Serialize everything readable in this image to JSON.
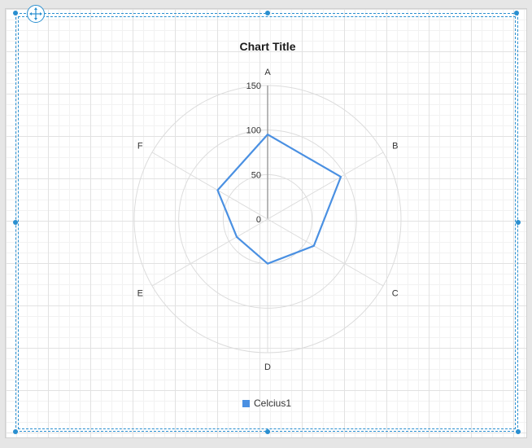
{
  "chart_data": {
    "type": "radar",
    "title": "Chart Title",
    "categories": [
      "A",
      "B",
      "C",
      "D",
      "E",
      "F"
    ],
    "radial_ticks": [
      "0",
      "50",
      "100",
      "150"
    ],
    "rmax": 150,
    "series": [
      {
        "name": "Celcius1",
        "values": [
          95,
          95,
          60,
          50,
          40,
          65
        ],
        "color": "#4a90e2"
      }
    ],
    "legend_position": "bottom",
    "grid": true
  },
  "colors": {
    "selection": "#2a8fd0",
    "series": "#4a90e2",
    "grid": "#dcdcdc",
    "axis": "#a0a0a0"
  },
  "icons": {
    "move": "move-arrows-icon"
  }
}
